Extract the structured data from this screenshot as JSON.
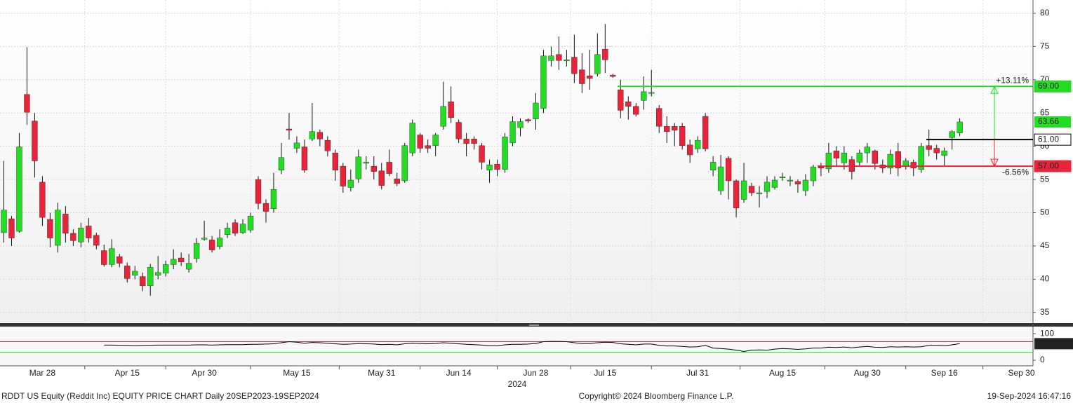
{
  "chart_data": [
    {
      "type": "candlestick",
      "categories": [
        null,
        null,
        null,
        null,
        null,
        "Mar 28",
        null,
        null,
        null,
        null,
        null,
        null,
        null,
        null,
        null,
        null,
        "Apr 15",
        null,
        null,
        null,
        null,
        null,
        null,
        null,
        null,
        null,
        "Apr 30",
        null,
        null,
        null,
        null,
        null,
        null,
        null,
        null,
        null,
        null,
        null,
        "May 15",
        null,
        null,
        null,
        null,
        null,
        null,
        null,
        null,
        null,
        null,
        "May 31",
        null,
        null,
        null,
        null,
        null,
        null,
        null,
        null,
        null,
        "Jun 14",
        null,
        null,
        null,
        null,
        null,
        null,
        null,
        null,
        null,
        "Jun 28",
        null,
        null,
        null,
        null,
        null,
        null,
        null,
        null,
        "Jul 15",
        null,
        null,
        null,
        null,
        null,
        null,
        null,
        null,
        null,
        null,
        null,
        "Jul 31",
        null,
        null,
        null,
        null,
        null,
        null,
        null,
        null,
        null,
        null,
        "Aug 15",
        null,
        null,
        null,
        null,
        null,
        null,
        null,
        null,
        null,
        null,
        "Aug 30",
        null,
        null,
        null,
        null,
        null,
        null,
        null,
        null,
        null,
        "Sep 16",
        null,
        null,
        null,
        null,
        null,
        null,
        null,
        null,
        null,
        "Sep 30",
        null
      ],
      "open": [
        47,
        49.1,
        47.2,
        67.8,
        63.8,
        54.6,
        49,
        45.1,
        49.8,
        46.9,
        45.6,
        48,
        46.6,
        44.3,
        42.2,
        43.4,
        42,
        40.6,
        40.4,
        39,
        40.6,
        40.9,
        42.2,
        43.2,
        41.5,
        43.1,
        46,
        45.9,
        44.9,
        46.7,
        48.5,
        47,
        47.4,
        55,
        51.4,
        50.6,
        56.4,
        62.6,
        59.7,
        59.9,
        61.1,
        62.1,
        60.9,
        59,
        57,
        53.8,
        55.1,
        57.5,
        57,
        56.3,
        57.6,
        55.1,
        54.8,
        59,
        61.7,
        60.1,
        60.1,
        63,
        66.7,
        63.6,
        61.1,
        61.1,
        60.1,
        56.4,
        57.3,
        56.5,
        60.5,
        62.8,
        64,
        64.1,
        65.7,
        72.9,
        73.8,
        72.9,
        73.4,
        71.5,
        70.6,
        70.9,
        74.6,
        70.7,
        68.5,
        66.7,
        66,
        66.9,
        68,
        65.7,
        63,
        63,
        63,
        60.2,
        59.6,
        64.5,
        56.4,
        53.3,
        58.2,
        54.8,
        52,
        54,
        52.9,
        53.2,
        53.8,
        55.3,
        54.8,
        54.7,
        53.3,
        54.8,
        56.9,
        56.6,
        59.3,
        57.5,
        58,
        57.6,
        59,
        59.3,
        57.2,
        56.7,
        59.2,
        57,
        57.6,
        56.5,
        60.1,
        59.7,
        58.6,
        61.3,
        62,
        null,
        null,
        null,
        null,
        null,
        null,
        null,
        null,
        null
      ],
      "high": [
        57.8,
        49.5,
        62,
        74.9,
        65,
        55.5,
        50,
        51.5,
        51,
        47.5,
        48.5,
        49.2,
        47,
        45.2,
        46,
        43.8,
        42.5,
        42,
        41,
        42.3,
        43.5,
        42.8,
        44.5,
        44,
        43.8,
        46.2,
        48.8,
        46.5,
        47.5,
        48.5,
        49,
        49,
        50,
        55.5,
        52,
        56,
        60.5,
        65,
        61.5,
        61,
        66.5,
        62.5,
        61.5,
        59.5,
        57.5,
        56.5,
        59.5,
        58.5,
        58.5,
        57.5,
        59.5,
        56,
        60.5,
        64,
        62,
        61,
        62,
        69.7,
        69,
        64,
        62,
        61.5,
        60.5,
        58,
        58,
        62,
        64.5,
        64.2,
        64.2,
        68,
        74.5,
        75,
        76.5,
        74.5,
        76.8,
        74,
        74.5,
        77,
        78.4,
        70.9,
        70,
        67.5,
        66.5,
        70.5,
        71.5,
        66.2,
        64.5,
        63.5,
        63.5,
        61,
        61.5,
        65,
        58.5,
        58.7,
        58.5,
        55,
        57.5,
        54.5,
        54,
        55.5,
        55.5,
        56,
        55.5,
        55,
        55.8,
        57.2,
        57.5,
        60.5,
        60,
        60,
        58.5,
        59.5,
        60.5,
        59.5,
        58,
        59.5,
        60.5,
        58.2,
        58,
        60.5,
        62.5,
        60.2,
        59.8,
        62.4,
        64.2,
        null,
        null,
        null,
        null,
        null,
        null,
        null,
        null,
        null
      ],
      "low": [
        45.5,
        45,
        47,
        63.2,
        55.3,
        48,
        44.8,
        44,
        45.5,
        45,
        44.8,
        45.5,
        44.5,
        41.9,
        41.8,
        41.8,
        39.5,
        40,
        38.2,
        37.5,
        40,
        40.4,
        41.5,
        42,
        41,
        42.5,
        45.8,
        44,
        44.5,
        46.2,
        46.5,
        46.8,
        47,
        50.5,
        48.5,
        50,
        55.8,
        61,
        59,
        56,
        60.8,
        60,
        58.5,
        54.8,
        53,
        53.2,
        54.5,
        56.5,
        55,
        53.5,
        55.5,
        54,
        54.5,
        58.5,
        59,
        59,
        58.5,
        62.5,
        63.5,
        60.5,
        58.5,
        59.5,
        56.5,
        54.5,
        55.5,
        56,
        60,
        61.5,
        63.5,
        62.5,
        65,
        72,
        71.5,
        72,
        69.5,
        68,
        68.5,
        70.5,
        71,
        70.3,
        64.2,
        64,
        64.5,
        65.5,
        67.5,
        62,
        60.5,
        60,
        59.5,
        57.5,
        59,
        59.2,
        55.5,
        52.7,
        52,
        49.3,
        51.5,
        52.5,
        50.8,
        52.2,
        53.5,
        54.8,
        54,
        53,
        52.5,
        54,
        55.5,
        56,
        57,
        56.5,
        55,
        57,
        57.5,
        56.5,
        56,
        55.8,
        55.5,
        56.5,
        55.5,
        56,
        58.5,
        58,
        57.1,
        59.5,
        61.5,
        null,
        null,
        null,
        null,
        null,
        null,
        null,
        null,
        null
      ],
      "close": [
        50.4,
        46.2,
        59.9,
        65.1,
        57.8,
        49.3,
        46.2,
        50.4,
        46.9,
        45.8,
        47.7,
        46.2,
        45.1,
        42.2,
        44.6,
        42.4,
        40.1,
        41.2,
        39,
        41.8,
        41,
        42.2,
        43,
        42.6,
        42.4,
        45.4,
        46.2,
        44.4,
        46.2,
        47.7,
        46.9,
        48.3,
        49.5,
        51.4,
        50.2,
        53.5,
        58.3,
        62.4,
        60.5,
        56.4,
        62.2,
        61.1,
        59.3,
        56.4,
        54,
        54.9,
        58.4,
        57.6,
        56.2,
        54.1,
        55.9,
        54.4,
        60.1,
        63.5,
        59.7,
        59.7,
        61.7,
        66,
        64.3,
        61.1,
        60.4,
        60.4,
        57.6,
        57.2,
        56.5,
        61.4,
        63.7,
        63.7,
        63.8,
        66.5,
        73.6,
        73.6,
        72.9,
        73,
        70.9,
        69.4,
        70.2,
        73.8,
        73,
        70.5,
        65.4,
        66,
        64.8,
        68.2,
        68.1,
        63,
        62.2,
        62.4,
        60.1,
        58.7,
        60.9,
        59.6,
        57.6,
        56.9,
        54.8,
        50.7,
        54.8,
        53,
        53,
        54.6,
        54.9,
        55.4,
        54.9,
        54.3,
        54.9,
        56.9,
        56.7,
        59,
        58.2,
        59,
        56.2,
        59,
        59.9,
        57.4,
        56.7,
        58.8,
        56.7,
        57.8,
        56.7,
        60,
        59.5,
        59,
        59.3,
        62.2,
        63.66,
        null,
        null,
        null,
        null,
        null,
        null,
        null,
        null,
        null
      ],
      "up_color": "#22dd22",
      "down_color": "#e8233a",
      "ylim": [
        33.5,
        82
      ],
      "yticks": [
        35,
        40,
        45,
        50,
        55,
        60,
        65,
        70,
        75,
        80
      ],
      "grid": true,
      "x_year_label": "2024",
      "levels": [
        {
          "value": 69,
          "label": "69.00",
          "color": "#22dd22",
          "change": "+13.11%"
        },
        {
          "value": 61,
          "label": "61.00",
          "color": "#000000"
        },
        {
          "value": 57,
          "label": "57.00",
          "color": "#e8233a",
          "change": "-6.56%"
        }
      ]
    },
    {
      "type": "line",
      "values": [
        null,
        null,
        null,
        null,
        null,
        null,
        null,
        null,
        null,
        null,
        null,
        null,
        null,
        57,
        57,
        56,
        56,
        55,
        56,
        56,
        57,
        57,
        57,
        57,
        57,
        58,
        58,
        57,
        58,
        59,
        59,
        59,
        60,
        60,
        61,
        62,
        66,
        70,
        68,
        64,
        67,
        66,
        64,
        62,
        60,
        61,
        63,
        62,
        61,
        59,
        60,
        58,
        62,
        64,
        63,
        62,
        63,
        66,
        64,
        62,
        60,
        59,
        57,
        55,
        55,
        58,
        60,
        60,
        61,
        63,
        70,
        71,
        71,
        70,
        66,
        63,
        63,
        66,
        68,
        67,
        62,
        60,
        58,
        61,
        61,
        56,
        54,
        54,
        52,
        50,
        51,
        56,
        46,
        44,
        42,
        38,
        33,
        38,
        39,
        38,
        42,
        44,
        43,
        41,
        43,
        46,
        46,
        49,
        48,
        50,
        47,
        50,
        52,
        49,
        48,
        51,
        50,
        51,
        50,
        51,
        56,
        56,
        55,
        58,
        62.4809,
        null,
        null,
        null,
        null,
        null,
        null,
        null,
        null,
        null
      ],
      "color": "#000000",
      "ylim": [
        -21,
        124
      ],
      "yticks": [
        0,
        100
      ],
      "hlines": [
        {
          "value": 70,
          "color": "#e8233a"
        },
        {
          "value": 30,
          "color": "#22dd22"
        }
      ]
    }
  ],
  "footer": {
    "left": "RDDT US Equity (Reddit Inc) EQUITY PRICE CHART  Daily 20SEP2023-19SEP2024",
    "center": "Copyright© 2024 Bloomberg Finance L.P.",
    "right": "19-Sep-2024 16:47:16"
  }
}
